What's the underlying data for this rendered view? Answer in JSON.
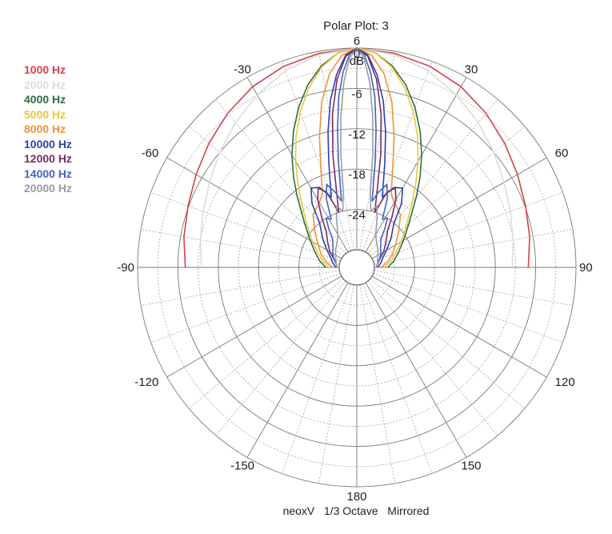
{
  "chart_data": {
    "type": "polar",
    "title": "Polar Plot: 3",
    "footer": "neoxV   1/3 Octave   Mirrored",
    "radial_unit": "dB",
    "radial_ticks": [
      "0",
      "-6",
      "-12",
      "-18",
      "-24"
    ],
    "radial_range": [
      -30,
      0
    ],
    "angle_ticks": [
      {
        "deg": 0,
        "label": "6"
      },
      {
        "deg": 30,
        "label": "30"
      },
      {
        "deg": 60,
        "label": "60"
      },
      {
        "deg": 90,
        "label": "90"
      },
      {
        "deg": 120,
        "label": "120"
      },
      {
        "deg": 150,
        "label": "150"
      },
      {
        "deg": 180,
        "label": "180"
      },
      {
        "deg": -150,
        "label": "-150"
      },
      {
        "deg": -120,
        "label": "-120"
      },
      {
        "deg": -90,
        "label": "-90"
      },
      {
        "deg": -60,
        "label": "-60"
      },
      {
        "deg": -30,
        "label": "-30"
      }
    ],
    "mirrored": true,
    "series": [
      {
        "name": "1000 Hz",
        "color": "#d6404c",
        "angles": [
          0,
          10,
          20,
          30,
          40,
          50,
          60,
          70,
          80,
          90
        ],
        "db": [
          0,
          -0.3,
          -0.8,
          -1.6,
          -2.7,
          -3.9,
          -5.0,
          -5.9,
          -6.5,
          -7.1
        ]
      },
      {
        "name": "2000 Hz",
        "color": "#dcdcdc",
        "angles": [
          0,
          10,
          20,
          30,
          40,
          50,
          60,
          70,
          80,
          90
        ],
        "db": [
          0,
          -0.5,
          -1.5,
          -3.0,
          -4.5,
          -6.0,
          -7.3,
          -8.3,
          -9.0,
          -9.5
        ]
      },
      {
        "name": "4000 Hz",
        "color": "#2f6d44",
        "angles": [
          0,
          5,
          10,
          15,
          20,
          25,
          30,
          35,
          40,
          50,
          60,
          70,
          80,
          90
        ],
        "db": [
          0,
          -0.6,
          -2.2,
          -4.5,
          -7.3,
          -10.3,
          -13.3,
          -16.2,
          -18.8,
          -22.5,
          -24.6,
          -26.0,
          -27.0,
          -28.0
        ]
      },
      {
        "name": "5000 Hz",
        "color": "#e7c93a",
        "angles": [
          0,
          5,
          10,
          15,
          20,
          25,
          30,
          35,
          40,
          50,
          60,
          70,
          80,
          90
        ],
        "db": [
          0,
          -0.6,
          -2.4,
          -5.0,
          -8.0,
          -11.2,
          -14.4,
          -17.3,
          -19.7,
          -23.0,
          -25.0,
          -26.5,
          -27.5,
          -28.5
        ]
      },
      {
        "name": "8000 Hz",
        "color": "#f0923d",
        "angles": [
          0,
          4,
          8,
          12,
          16,
          20,
          25,
          30,
          35,
          40,
          50,
          60,
          70,
          80,
          90
        ],
        "db": [
          0,
          -1.0,
          -3.5,
          -7.5,
          -12.5,
          -17.0,
          -20.5,
          -21.5,
          -22.0,
          -22.5,
          -24.5,
          -26.0,
          -27.0,
          -28.0,
          -29.0
        ]
      },
      {
        "name": "10000 Hz",
        "color": "#2e3fae",
        "angles": [
          0,
          3,
          6,
          9,
          12,
          15,
          20,
          25,
          30,
          35,
          40,
          50,
          60,
          70,
          80,
          90
        ],
        "db": [
          0,
          -1.0,
          -3.8,
          -7.5,
          -12.0,
          -16.5,
          -21.5,
          -19.5,
          -19.0,
          -21.0,
          -24.0,
          -26.0,
          -27.5,
          -28.5,
          -29.0,
          -29.5
        ]
      },
      {
        "name": "12000 Hz",
        "color": "#7a2b61",
        "angles": [
          0,
          3,
          6,
          9,
          12,
          15,
          18,
          22,
          26,
          30,
          35,
          40,
          50,
          60,
          70,
          80,
          90
        ],
        "db": [
          0,
          -1.2,
          -4.5,
          -9.5,
          -15.5,
          -21.0,
          -24.0,
          -20.5,
          -19.5,
          -21.0,
          -23.5,
          -25.5,
          -27.0,
          -28.0,
          -29.0,
          -29.5,
          -29.7
        ]
      },
      {
        "name": "14000 Hz",
        "color": "#3f64c4",
        "angles": [
          0,
          2,
          4,
          6,
          8,
          10,
          13,
          16,
          20,
          24,
          28,
          32,
          36,
          40,
          50,
          60,
          70,
          80,
          90
        ],
        "db": [
          0,
          -1.0,
          -3.5,
          -7.0,
          -12.0,
          -17.0,
          -22.5,
          -21.0,
          -19.5,
          -21.5,
          -24.5,
          -24.0,
          -25.5,
          -27.0,
          -28.0,
          -28.5,
          -29.0,
          -29.5,
          -29.7
        ]
      },
      {
        "name": "20000 Hz",
        "color": "#9a9aa8",
        "angles": [
          0,
          2,
          4,
          6,
          8,
          10,
          14,
          18,
          22,
          26,
          30,
          40,
          50,
          60,
          70,
          80,
          90
        ],
        "db": [
          0,
          -1.5,
          -5.0,
          -10.0,
          -15.5,
          -21.0,
          -24.0,
          -23.0,
          -24.5,
          -26.0,
          -27.0,
          -28.0,
          -28.5,
          -29.0,
          -29.3,
          -29.5,
          -29.7
        ]
      }
    ]
  }
}
